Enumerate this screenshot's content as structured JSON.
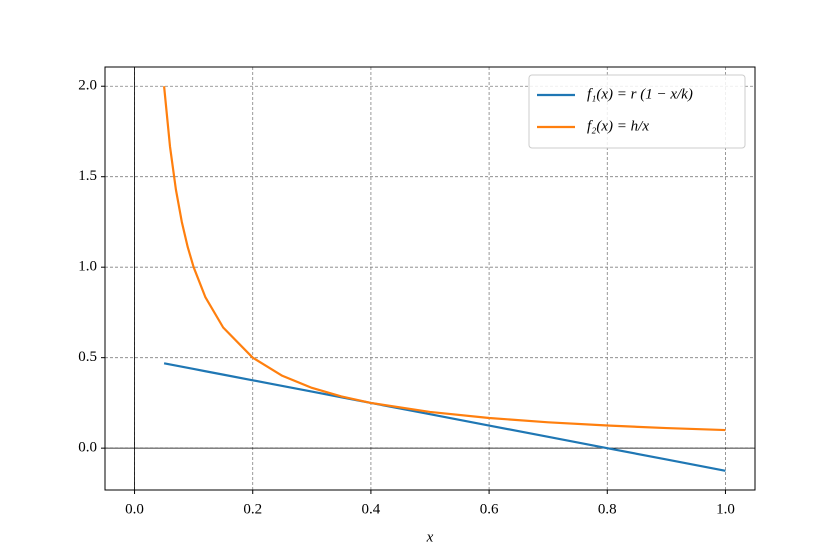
{
  "chart_data": {
    "type": "line",
    "x_label": "x",
    "x": [
      0.05,
      0.06,
      0.07,
      0.08,
      0.09,
      0.1,
      0.12,
      0.15,
      0.2,
      0.25,
      0.3,
      0.35,
      0.4,
      0.5,
      0.6,
      0.7,
      0.8,
      0.9,
      1.0
    ],
    "series": [
      {
        "name": "f₁(x) = r (1 − x/k)",
        "color": "#1f77b4",
        "values": [
          0.46875,
          0.4625,
          0.45625,
          0.45,
          0.44375,
          0.4375,
          0.425,
          0.40625,
          0.375,
          0.34375,
          0.3125,
          0.28125,
          0.25,
          0.1875,
          0.125,
          0.0625,
          0.0,
          -0.0625,
          -0.125
        ]
      },
      {
        "name": "f₂(x) = h/x",
        "color": "#ff7f0e",
        "values": [
          2.0,
          1.6667,
          1.4286,
          1.25,
          1.1111,
          1.0,
          0.8333,
          0.6667,
          0.5,
          0.4,
          0.3333,
          0.2857,
          0.25,
          0.2,
          0.1667,
          0.1429,
          0.125,
          0.1111,
          0.1
        ]
      }
    ],
    "xlim": [
      -0.05,
      1.05
    ],
    "ylim": [
      -0.23125,
      2.10625
    ],
    "xticks": [
      {
        "value": 0,
        "label": "0.0"
      },
      {
        "value": 0.2,
        "label": "0.2"
      },
      {
        "value": 0.4,
        "label": "0.4"
      },
      {
        "value": 0.6,
        "label": "0.6"
      },
      {
        "value": 0.8,
        "label": "0.8"
      },
      {
        "value": 1,
        "label": "1.0"
      }
    ],
    "yticks": [
      {
        "value": 0,
        "label": "0.0"
      },
      {
        "value": 0.5,
        "label": "0.5"
      },
      {
        "value": 1,
        "label": "1.0"
      },
      {
        "value": 1.5,
        "label": "1.5"
      },
      {
        "value": 2,
        "label": "2.0"
      }
    ],
    "grid": true,
    "legend": "upper right"
  }
}
